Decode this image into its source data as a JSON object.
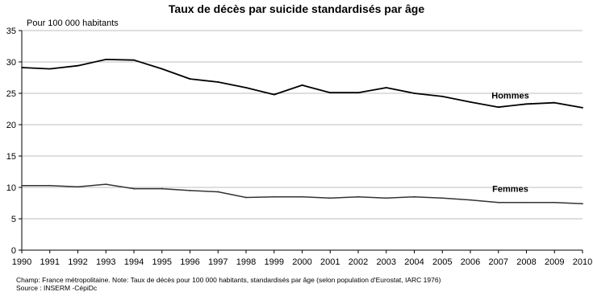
{
  "chart_data": {
    "type": "line",
    "title": "Taux de décès par suicide standardisés par âge",
    "ylabel": "Pour 100  000 habitants",
    "xlabel": "",
    "x": [
      1990,
      1991,
      1992,
      1993,
      1994,
      1995,
      1996,
      1997,
      1998,
      1999,
      2000,
      2001,
      2002,
      2003,
      2004,
      2005,
      2006,
      2007,
      2008,
      2009,
      2010
    ],
    "xlim": [
      1990,
      2010
    ],
    "ylim": [
      0,
      35
    ],
    "yticks": [
      0,
      5,
      10,
      15,
      20,
      25,
      30,
      35
    ],
    "grid": true,
    "legend": "inline labels",
    "series": [
      {
        "name": "Hommes",
        "color": "#000000",
        "values": [
          29.1,
          28.9,
          29.4,
          30.4,
          30.3,
          28.9,
          27.3,
          26.8,
          25.9,
          24.8,
          26.3,
          25.1,
          25.1,
          25.9,
          25.0,
          24.5,
          23.6,
          22.8,
          23.3,
          23.5,
          22.7
        ]
      },
      {
        "name": "Femmes",
        "color": "#333333",
        "values": [
          10.3,
          10.3,
          10.1,
          10.5,
          9.8,
          9.8,
          9.5,
          9.3,
          8.4,
          8.5,
          8.5,
          8.3,
          8.5,
          8.3,
          8.5,
          8.3,
          8.0,
          7.6,
          7.6,
          7.6,
          7.4
        ]
      }
    ]
  },
  "footnotes": {
    "champ": "Champ: France métropolitaine. Note: Taux de décès pour 100 000 habitants, standardisés par âge (selon population d'Eurostat, IARC 1976)",
    "source": "Source : INSERM -CépiDc"
  },
  "colors": {
    "grid": "#bdbdbd",
    "axis": "#000000"
  }
}
